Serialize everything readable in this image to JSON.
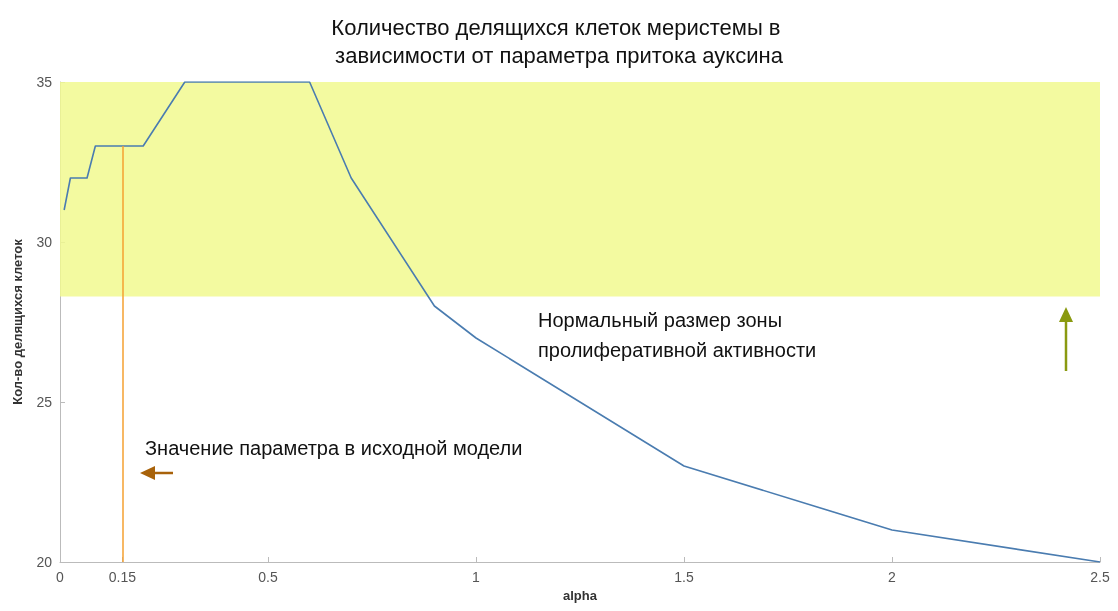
{
  "chart_data": {
    "type": "line",
    "title": "Количество делящихся клеток меристемы в зависимости от параметра притока ауксина",
    "xlabel": "alpha",
    "ylabel": "Кол-во делящихся клеток",
    "x": [
      0.01,
      0.025,
      0.065,
      0.085,
      0.2,
      0.3,
      0.6,
      0.7,
      0.9,
      1,
      1.5,
      2,
      2.5
    ],
    "series": [
      {
        "color": "#4a7cb0",
        "values": [
          31,
          32,
          32,
          33,
          33,
          35,
          35,
          32,
          28,
          27,
          23,
          21,
          20
        ]
      }
    ],
    "xlim": [
      0,
      2.5
    ],
    "xticks": [
      0,
      0.15,
      0.5,
      1,
      1.5,
      2,
      2.5
    ],
    "ylim": [
      20,
      35
    ],
    "yticks": [
      20,
      25,
      30,
      35
    ],
    "bands": [
      {
        "axis": "y",
        "from": 28.3,
        "to": 35,
        "color": "#f1f98f"
      }
    ],
    "ref_lines": [
      {
        "axis": "x",
        "value": 0.15,
        "color": "#f5a030"
      }
    ],
    "annotations": [
      "Значение параметра в исходной модели",
      "Нормальный размер зоны пролиферативной активности"
    ],
    "grid": false,
    "marker": "none",
    "line_style": "solid"
  }
}
